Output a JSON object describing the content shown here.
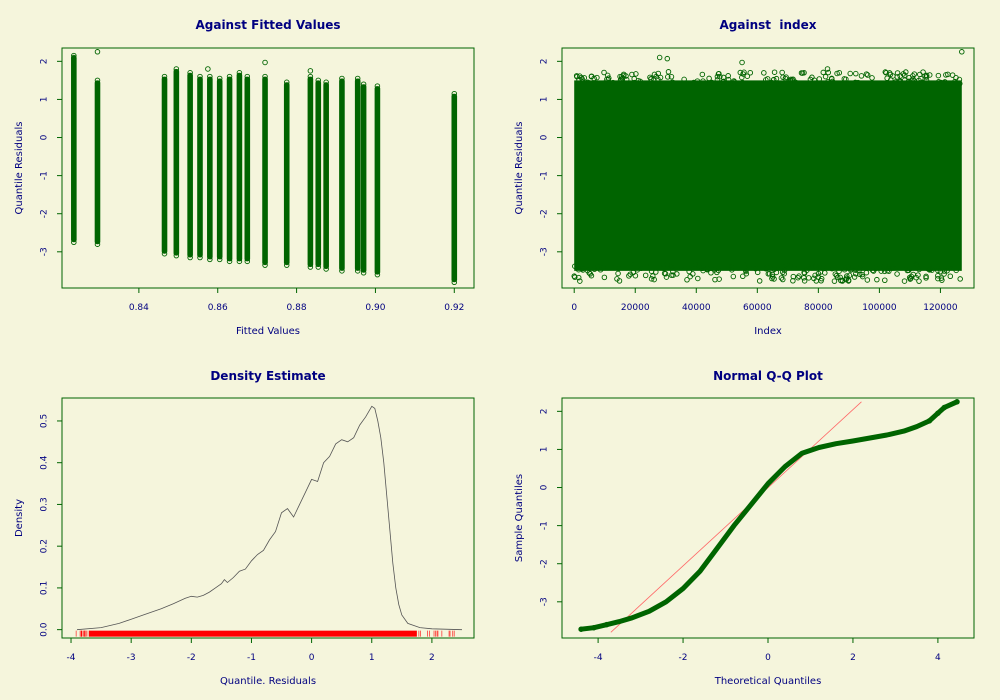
{
  "colors": {
    "background": "#f5f5dc",
    "frame": "#006400",
    "points": "#006400",
    "text": "#000080",
    "density_line": "#555555",
    "rug": "#ff0000",
    "qq_line": "#ff6666"
  },
  "chart_data": [
    {
      "type": "scatter",
      "title": "Against Fitted Values",
      "xlabel": "Fitted Values",
      "ylabel": "Quantile Residuals",
      "xlim": [
        0.8205,
        0.925
      ],
      "ylim": [
        -3.95,
        2.35
      ],
      "xticks": [
        0.84,
        0.86,
        0.88,
        0.9,
        0.92
      ],
      "xtick_labels": [
        "0.84",
        "0.86",
        "0.88",
        "0.90",
        "0.92"
      ],
      "yticks": [
        -3,
        -2,
        -1,
        0,
        1,
        2
      ],
      "ytick_labels": [
        "-3",
        "-2",
        "-1",
        "0",
        "1",
        "2"
      ],
      "fitted_value_columns": [
        {
          "x": 0.8235,
          "ymin": -2.75,
          "ymax": 2.15
        },
        {
          "x": 0.8295,
          "ymin": -2.8,
          "ymax": 1.5
        },
        {
          "x": 0.8465,
          "ymin": -3.05,
          "ymax": 1.6
        },
        {
          "x": 0.8495,
          "ymin": -3.1,
          "ymax": 1.8
        },
        {
          "x": 0.853,
          "ymin": -3.15,
          "ymax": 1.7
        },
        {
          "x": 0.8555,
          "ymin": -3.15,
          "ymax": 1.6
        },
        {
          "x": 0.858,
          "ymin": -3.2,
          "ymax": 1.6
        },
        {
          "x": 0.8605,
          "ymin": -3.2,
          "ymax": 1.55
        },
        {
          "x": 0.863,
          "ymin": -3.25,
          "ymax": 1.6
        },
        {
          "x": 0.8655,
          "ymin": -3.25,
          "ymax": 1.7
        },
        {
          "x": 0.8675,
          "ymin": -3.25,
          "ymax": 1.6
        },
        {
          "x": 0.872,
          "ymin": -3.35,
          "ymax": 1.6
        },
        {
          "x": 0.8775,
          "ymin": -3.35,
          "ymax": 1.45
        },
        {
          "x": 0.8835,
          "ymin": -3.4,
          "ymax": 1.6
        },
        {
          "x": 0.8855,
          "ymin": -3.4,
          "ymax": 1.5
        },
        {
          "x": 0.8875,
          "ymin": -3.45,
          "ymax": 1.45
        },
        {
          "x": 0.8915,
          "ymin": -3.5,
          "ymax": 1.55
        },
        {
          "x": 0.8955,
          "ymin": -3.5,
          "ymax": 1.55
        },
        {
          "x": 0.897,
          "ymin": -3.55,
          "ymax": 1.4
        },
        {
          "x": 0.9005,
          "ymin": -3.6,
          "ymax": 1.35
        },
        {
          "x": 0.92,
          "ymin": -3.8,
          "ymax": 1.15
        }
      ],
      "outliers": [
        {
          "x": 0.8295,
          "y": 2.25
        },
        {
          "x": 0.8235,
          "y": 2.1
        },
        {
          "x": 0.8575,
          "y": 1.8
        },
        {
          "x": 0.872,
          "y": 1.97
        },
        {
          "x": 0.8835,
          "y": 1.75
        }
      ]
    },
    {
      "type": "scatter",
      "title": "Against  index",
      "xlabel": "Index",
      "ylabel": "Quantile Residuals",
      "xlim": [
        -4000,
        131000
      ],
      "ylim": [
        -3.95,
        2.35
      ],
      "xticks": [
        0,
        20000,
        40000,
        60000,
        80000,
        100000,
        120000
      ],
      "xtick_labels": [
        "0",
        "20000",
        "40000",
        "60000",
        "80000",
        "100000",
        "120000"
      ],
      "yticks": [
        -3,
        -2,
        -1,
        0,
        1,
        2
      ],
      "ytick_labels": [
        "-3",
        "-2",
        "-1",
        "0",
        "1",
        "2"
      ],
      "index_max": 127000,
      "band": {
        "ymin": -3.5,
        "ymax": 1.5
      },
      "outliers": [
        {
          "x": 28000,
          "y": 2.1
        },
        {
          "x": 55000,
          "y": 1.97
        },
        {
          "x": 127000,
          "y": 2.25
        },
        {
          "x": 30500,
          "y": 2.07
        },
        {
          "x": 83000,
          "y": 1.8
        },
        {
          "x": 38000,
          "y": -3.65
        },
        {
          "x": 40500,
          "y": -3.7
        }
      ]
    },
    {
      "type": "line",
      "title": "Density Estimate",
      "xlabel": "Quantile. Residuals",
      "ylabel": "Density",
      "xlim": [
        -4.15,
        2.7
      ],
      "ylim": [
        -0.02,
        0.555
      ],
      "xticks": [
        -4,
        -3,
        -2,
        -1,
        0,
        1,
        2
      ],
      "xtick_labels": [
        "-4",
        "-3",
        "-2",
        "-1",
        "0",
        "1",
        "2"
      ],
      "yticks": [
        0.0,
        0.1,
        0.2,
        0.3,
        0.4,
        0.5
      ],
      "ytick_labels": [
        "0.0",
        "0.1",
        "0.2",
        "0.3",
        "0.4",
        "0.5"
      ],
      "x": [
        -3.9,
        -3.5,
        -3.2,
        -3.0,
        -2.8,
        -2.5,
        -2.3,
        -2.1,
        -2.0,
        -1.9,
        -1.8,
        -1.7,
        -1.6,
        -1.5,
        -1.45,
        -1.4,
        -1.3,
        -1.2,
        -1.1,
        -1.0,
        -0.9,
        -0.8,
        -0.7,
        -0.6,
        -0.5,
        -0.4,
        -0.3,
        -0.2,
        -0.1,
        0.0,
        0.1,
        0.2,
        0.3,
        0.4,
        0.5,
        0.6,
        0.7,
        0.8,
        0.9,
        1.0,
        1.05,
        1.1,
        1.15,
        1.2,
        1.25,
        1.3,
        1.35,
        1.4,
        1.45,
        1.5,
        1.6,
        1.8,
        2.0,
        2.5
      ],
      "y": [
        0.0,
        0.005,
        0.015,
        0.025,
        0.035,
        0.05,
        0.062,
        0.075,
        0.08,
        0.078,
        0.082,
        0.09,
        0.1,
        0.11,
        0.12,
        0.113,
        0.125,
        0.14,
        0.145,
        0.165,
        0.18,
        0.19,
        0.215,
        0.235,
        0.28,
        0.29,
        0.27,
        0.3,
        0.33,
        0.36,
        0.355,
        0.4,
        0.415,
        0.445,
        0.455,
        0.45,
        0.46,
        0.49,
        0.51,
        0.535,
        0.53,
        0.5,
        0.46,
        0.4,
        0.32,
        0.24,
        0.16,
        0.1,
        0.06,
        0.035,
        0.015,
        0.005,
        0.002,
        0.0
      ],
      "rug": {
        "from": -3.7,
        "to": 1.75
      }
    },
    {
      "type": "scatter",
      "title": "Normal Q-Q Plot",
      "xlabel": "Theoretical Quantiles",
      "ylabel": "Sample Quantiles",
      "xlim": [
        -4.85,
        4.85
      ],
      "ylim": [
        -3.95,
        2.35
      ],
      "xticks": [
        -4,
        -2,
        0,
        2,
        4
      ],
      "xtick_labels": [
        "-4",
        "-2",
        "0",
        "2",
        "4"
      ],
      "yticks": [
        -3,
        -2,
        -1,
        0,
        1,
        2
      ],
      "ytick_labels": [
        "-3",
        "-2",
        "-1",
        "0",
        "1",
        "2"
      ],
      "theoretical": [
        -4.4,
        -4.1,
        -3.8,
        -3.5,
        -3.2,
        -2.8,
        -2.4,
        -2.0,
        -1.6,
        -1.2,
        -0.8,
        -0.4,
        0.0,
        0.4,
        0.8,
        1.2,
        1.6,
        2.0,
        2.4,
        2.8,
        3.2,
        3.5,
        3.8,
        4.0,
        4.15,
        4.45
      ],
      "sample": [
        -3.72,
        -3.68,
        -3.6,
        -3.52,
        -3.42,
        -3.25,
        -3.0,
        -2.65,
        -2.2,
        -1.6,
        -1.0,
        -0.45,
        0.1,
        0.55,
        0.9,
        1.05,
        1.15,
        1.22,
        1.3,
        1.38,
        1.48,
        1.6,
        1.75,
        1.95,
        2.1,
        2.25
      ],
      "reference_line": {
        "x": [
          -3.7,
          2.2
        ],
        "y": [
          -3.8,
          2.25
        ]
      }
    }
  ]
}
